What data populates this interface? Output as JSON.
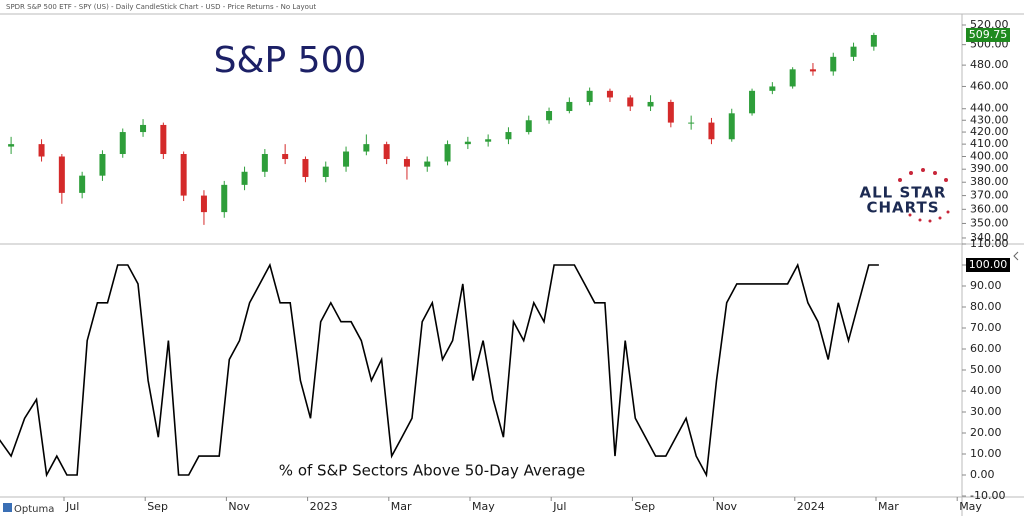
{
  "header": "SPDR S&P 500 ETF - SPY (US) - Daily CandleStick Chart - USD - Price Returns - No Layout",
  "branding": {
    "logo_line1": "ALL STAR",
    "logo_line2": "CHARTS",
    "vendor": "Optuma"
  },
  "chart_data": [
    {
      "type": "candlestick",
      "title": "S&P 500",
      "log_scale": true,
      "up_color": "#2e9e3a",
      "down_color": "#d42a2a",
      "last_value_label": "509.75",
      "last_label_color": "#1f8a1f",
      "x": [
        "2022-05",
        "2022-06",
        "2022-06",
        "2022-07",
        "2022-07",
        "2022-08",
        "2022-08",
        "2022-09",
        "2022-09",
        "2022-10",
        "2022-10",
        "2022-11",
        "2022-11",
        "2022-12",
        "2022-12",
        "2023-01",
        "2023-01",
        "2023-02",
        "2023-02",
        "2023-03",
        "2023-03",
        "2023-04",
        "2023-04",
        "2023-05",
        "2023-05",
        "2023-06",
        "2023-06",
        "2023-07",
        "2023-07",
        "2023-08",
        "2023-08",
        "2023-09",
        "2023-09",
        "2023-10",
        "2023-10",
        "2023-11",
        "2023-11",
        "2023-12",
        "2023-12",
        "2024-01",
        "2024-01",
        "2024-02",
        "2024-02"
      ],
      "open": [
        408,
        410,
        400,
        372,
        385,
        402,
        420,
        426,
        402,
        370,
        358,
        378,
        388,
        402,
        398,
        384,
        392,
        404,
        410,
        398,
        392,
        396,
        410,
        412,
        414,
        420,
        430,
        438,
        446,
        456,
        450,
        442,
        446,
        428,
        428,
        414,
        436,
        456,
        460,
        476,
        474,
        488,
        498
      ],
      "high": [
        416,
        414,
        402,
        388,
        405,
        423,
        431,
        428,
        404,
        374,
        381,
        392,
        406,
        410,
        400,
        396,
        408,
        418,
        412,
        400,
        400,
        413,
        416,
        418,
        424,
        434,
        441,
        450,
        459,
        458,
        452,
        452,
        448,
        434,
        432,
        440,
        458,
        464,
        478,
        482,
        492,
        502,
        512
      ],
      "low": [
        402,
        396,
        364,
        368,
        381,
        399,
        416,
        398,
        366,
        349,
        354,
        374,
        384,
        394,
        380,
        380,
        388,
        401,
        394,
        382,
        388,
        393,
        406,
        408,
        410,
        418,
        427,
        436,
        443,
        446,
        438,
        438,
        424,
        422,
        410,
        412,
        434,
        453,
        458,
        470,
        470,
        484,
        494
      ],
      "close": [
        410,
        400,
        372,
        385,
        402,
        420,
        426,
        402,
        370,
        358,
        378,
        388,
        402,
        398,
        384,
        392,
        404,
        410,
        398,
        392,
        396,
        410,
        412,
        414,
        420,
        430,
        438,
        446,
        456,
        450,
        442,
        446,
        428,
        428,
        414,
        436,
        456,
        460,
        476,
        474,
        488,
        498,
        509.75
      ],
      "ylim": [
        335,
        525
      ],
      "yticks": [
        {
          "value": 340,
          "label": "340.00"
        },
        {
          "value": 350,
          "label": "350.00"
        },
        {
          "value": 360,
          "label": "360.00"
        },
        {
          "value": 370,
          "label": "370.00"
        },
        {
          "value": 380,
          "label": "380.00"
        },
        {
          "value": 390,
          "label": "390.00"
        },
        {
          "value": 400,
          "label": "400.00"
        },
        {
          "value": 410,
          "label": "410.00"
        },
        {
          "value": 420,
          "label": "420.00"
        },
        {
          "value": 430,
          "label": "430.00"
        },
        {
          "value": 440,
          "label": "440.00"
        },
        {
          "value": 460,
          "label": "460.00"
        },
        {
          "value": 480,
          "label": "480.00"
        },
        {
          "value": 500,
          "label": "500.00"
        },
        {
          "value": 520,
          "label": "520.00"
        }
      ]
    },
    {
      "type": "line",
      "annotation": "% of S&P Sectors Above 50-Day Average",
      "color": "#000000",
      "last_value_label": "100.00",
      "last_label_color": "#000000",
      "x": [
        "2022-05",
        "2022-05",
        "2022-05",
        "2022-06",
        "2022-06",
        "2022-06",
        "2022-06",
        "2022-07",
        "2022-07",
        "2022-07",
        "2022-07",
        "2022-08",
        "2022-08",
        "2022-08",
        "2022-08",
        "2022-09",
        "2022-09",
        "2022-09",
        "2022-09",
        "2022-10",
        "2022-10",
        "2022-10",
        "2022-10",
        "2022-11",
        "2022-11",
        "2022-11",
        "2022-11",
        "2022-12",
        "2022-12",
        "2022-12",
        "2022-12",
        "2023-01",
        "2023-01",
        "2023-01",
        "2023-01",
        "2023-02",
        "2023-02",
        "2023-02",
        "2023-02",
        "2023-03",
        "2023-03",
        "2023-03",
        "2023-03",
        "2023-04",
        "2023-04",
        "2023-04",
        "2023-04",
        "2023-05",
        "2023-05",
        "2023-05",
        "2023-05",
        "2023-06",
        "2023-06",
        "2023-06",
        "2023-06",
        "2023-07",
        "2023-07",
        "2023-07",
        "2023-07",
        "2023-08",
        "2023-08",
        "2023-08",
        "2023-08",
        "2023-09",
        "2023-09",
        "2023-09",
        "2023-09",
        "2023-10",
        "2023-10",
        "2023-10",
        "2023-10",
        "2023-11",
        "2023-11",
        "2023-11",
        "2023-11",
        "2023-12",
        "2023-12",
        "2023-12",
        "2023-12",
        "2024-01",
        "2024-01",
        "2024-01",
        "2024-01",
        "2024-02",
        "2024-02",
        "2024-02",
        "2024-02"
      ],
      "values": [
        18,
        9,
        27,
        36,
        0,
        9,
        0,
        0,
        64,
        82,
        82,
        100,
        100,
        91,
        45,
        18,
        64,
        0,
        0,
        9,
        9,
        9,
        55,
        64,
        82,
        91,
        100,
        82,
        82,
        45,
        27,
        73,
        82,
        73,
        73,
        64,
        45,
        55,
        9,
        18,
        27,
        73,
        82,
        55,
        64,
        91,
        45,
        64,
        36,
        18,
        73,
        64,
        82,
        73,
        100,
        100,
        100,
        91,
        82,
        82,
        9,
        64,
        27,
        18,
        9,
        9,
        18,
        27,
        9,
        0,
        45,
        82,
        91,
        91,
        91,
        91,
        91,
        91,
        100,
        82,
        73,
        55,
        82,
        64,
        82,
        100,
        100
      ],
      "ylim": [
        -10,
        110
      ],
      "yticks": [
        {
          "value": -10,
          "label": "-10.00"
        },
        {
          "value": 0,
          "label": "0.00"
        },
        {
          "value": 10,
          "label": "10.00"
        },
        {
          "value": 20,
          "label": "20.00"
        },
        {
          "value": 30,
          "label": "30.00"
        },
        {
          "value": 40,
          "label": "40.00"
        },
        {
          "value": 50,
          "label": "50.00"
        },
        {
          "value": 60,
          "label": "60.00"
        },
        {
          "value": 70,
          "label": "70.00"
        },
        {
          "value": 80,
          "label": "80.00"
        },
        {
          "value": 90,
          "label": "90.00"
        },
        {
          "value": 100,
          "label": "100.00"
        },
        {
          "value": 110,
          "label": "110.00"
        }
      ],
      "xticks": [
        {
          "value": "2022-07",
          "label": "Jul"
        },
        {
          "value": "2022-09",
          "label": "Sep"
        },
        {
          "value": "2022-11",
          "label": "Nov"
        },
        {
          "value": "2023-01",
          "label": "2023"
        },
        {
          "value": "2023-03",
          "label": "Mar"
        },
        {
          "value": "2023-05",
          "label": "May"
        },
        {
          "value": "2023-07",
          "label": "Jul"
        },
        {
          "value": "2023-09",
          "label": "Sep"
        },
        {
          "value": "2023-11",
          "label": "Nov"
        },
        {
          "value": "2024-01",
          "label": "2024"
        },
        {
          "value": "2024-03",
          "label": "Mar"
        },
        {
          "value": "2024-05",
          "label": "May"
        }
      ]
    }
  ]
}
